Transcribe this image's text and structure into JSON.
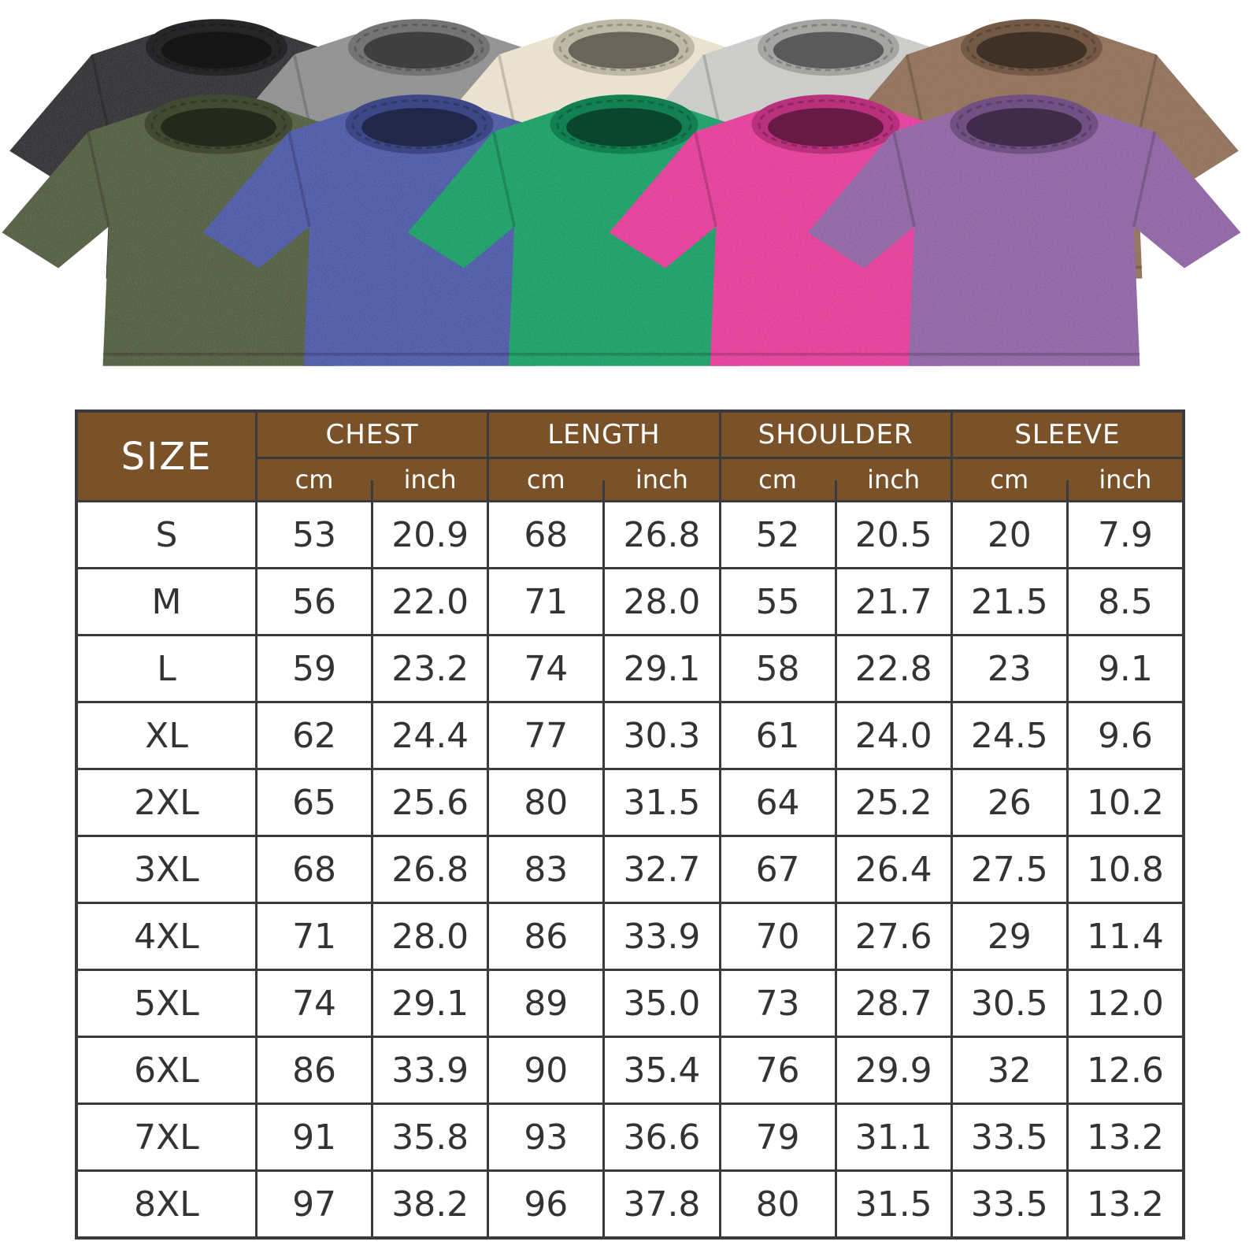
{
  "colors": {
    "table_header_bg": "#7a5229",
    "table_border": "#3b3b3b",
    "header_text": "#ffffff",
    "body_text": "#333333"
  },
  "product_gallery": {
    "shirts": [
      {
        "name": "black",
        "color": "#2e2e31"
      },
      {
        "name": "grey",
        "color": "#8d8d8f"
      },
      {
        "name": "beige",
        "color": "#e9e0cc"
      },
      {
        "name": "light-grey",
        "color": "#c9c9c7"
      },
      {
        "name": "brown",
        "color": "#8e6d55"
      },
      {
        "name": "army-green",
        "color": "#4f5a3d"
      },
      {
        "name": "blue",
        "color": "#4a56a3"
      },
      {
        "name": "green",
        "color": "#169c63"
      },
      {
        "name": "rose-red",
        "color": "#e23a97"
      },
      {
        "name": "purple",
        "color": "#8c61a1"
      }
    ]
  },
  "chart_data": {
    "type": "table",
    "header": {
      "size_label": "SIZE",
      "groups": [
        "CHEST",
        "LENGTH",
        "SHOULDER",
        "SLEEVE"
      ],
      "unit_cm": "cm",
      "unit_inch": "inch"
    },
    "columns": [
      "SIZE",
      "CHEST cm",
      "CHEST inch",
      "LENGTH cm",
      "LENGTH inch",
      "SHOULDER cm",
      "SHOULDER inch",
      "SLEEVE cm",
      "SLEEVE inch"
    ],
    "rows": [
      [
        "S",
        "53",
        "20.9",
        "68",
        "26.8",
        "52",
        "20.5",
        "20",
        "7.9"
      ],
      [
        "M",
        "56",
        "22.0",
        "71",
        "28.0",
        "55",
        "21.7",
        "21.5",
        "8.5"
      ],
      [
        "L",
        "59",
        "23.2",
        "74",
        "29.1",
        "58",
        "22.8",
        "23",
        "9.1"
      ],
      [
        "XL",
        "62",
        "24.4",
        "77",
        "30.3",
        "61",
        "24.0",
        "24.5",
        "9.6"
      ],
      [
        "2XL",
        "65",
        "25.6",
        "80",
        "31.5",
        "64",
        "25.2",
        "26",
        "10.2"
      ],
      [
        "3XL",
        "68",
        "26.8",
        "83",
        "32.7",
        "67",
        "26.4",
        "27.5",
        "10.8"
      ],
      [
        "4XL",
        "71",
        "28.0",
        "86",
        "33.9",
        "70",
        "27.6",
        "29",
        "11.4"
      ],
      [
        "5XL",
        "74",
        "29.1",
        "89",
        "35.0",
        "73",
        "28.7",
        "30.5",
        "12.0"
      ],
      [
        "6XL",
        "86",
        "33.9",
        "90",
        "35.4",
        "76",
        "29.9",
        "32",
        "12.6"
      ],
      [
        "7XL",
        "91",
        "35.8",
        "93",
        "36.6",
        "79",
        "31.1",
        "33.5",
        "13.2"
      ],
      [
        "8XL",
        "97",
        "38.2",
        "96",
        "37.8",
        "80",
        "31.5",
        "33.5",
        "13.2"
      ]
    ]
  }
}
